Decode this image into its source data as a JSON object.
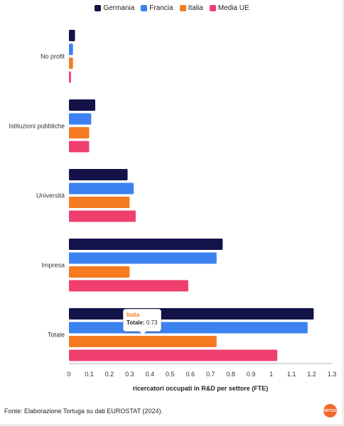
{
  "chart_data": {
    "type": "bar",
    "orientation": "horizontal",
    "categories": [
      "No profit",
      "Istituzioni pubbliche",
      "Università",
      "Impresa",
      "Totale"
    ],
    "series": [
      {
        "name": "Germania",
        "color": "#13134a",
        "values": [
          0.03,
          0.13,
          0.29,
          0.76,
          1.21
        ]
      },
      {
        "name": "Francia",
        "color": "#3b82f0",
        "values": [
          0.02,
          0.11,
          0.32,
          0.73,
          1.18
        ]
      },
      {
        "name": "Italia",
        "color": "#f47b20",
        "values": [
          0.02,
          0.1,
          0.3,
          0.3,
          0.73
        ]
      },
      {
        "name": "Media UE",
        "color": "#ef3f6e",
        "values": [
          0.01,
          0.1,
          0.33,
          0.59,
          1.03
        ]
      }
    ],
    "xlabel": "ricercatori occupati in R&D per settore (FTE)",
    "ylabel": "",
    "xlim": [
      0,
      1.3
    ],
    "xticks": [
      "0",
      "0.1",
      "0.2",
      "0.3",
      "0.4",
      "0.5",
      "0.6",
      "0.7",
      "0.8",
      "0.9",
      "1",
      "1.1",
      "1.2",
      "1.3"
    ],
    "legend_position": "top-center",
    "grid": false
  },
  "tooltip": {
    "title": "Italia",
    "label": "Totale:",
    "value": "0.73"
  },
  "source": "Fonte: Elaborazione Tortuga su dati EUROSTAT (2024).",
  "logo_text": "TORTUGA"
}
